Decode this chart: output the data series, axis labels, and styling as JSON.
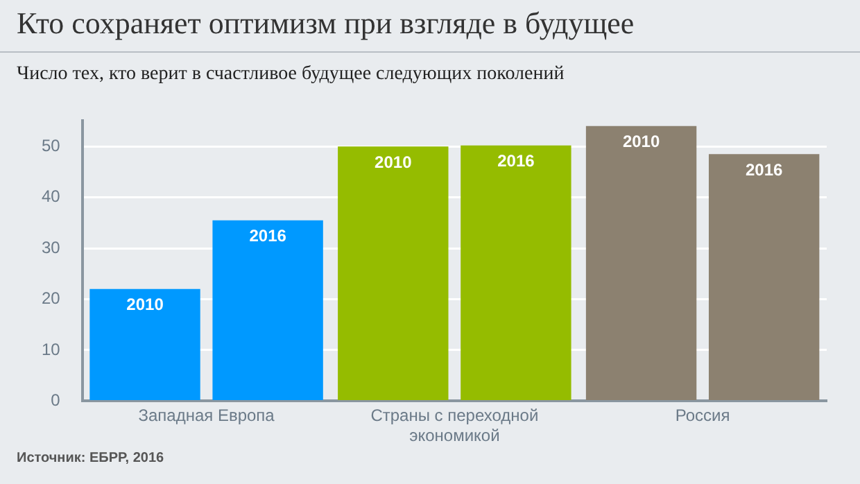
{
  "chart_data": {
    "type": "bar",
    "title": "Кто сохраняет оптимизм при взгляде в будущее",
    "subtitle": "Число тех, кто верит в счастливое будущее следующих поколений",
    "categories": [
      "Западная Европа",
      "Страны с переходной экономикой",
      "Россия"
    ],
    "series": [
      {
        "name": "2010",
        "colors": [
          "#0099ff",
          "#95bc00",
          "#8c8170"
        ],
        "values": [
          22,
          50,
          54
        ]
      },
      {
        "name": "2016",
        "colors": [
          "#0099ff",
          "#95bc00",
          "#8c8170"
        ],
        "values": [
          35.5,
          50.2,
          48.5
        ]
      }
    ],
    "ylim": [
      0,
      55
    ],
    "yticks": [
      0,
      10,
      20,
      30,
      40,
      50
    ],
    "grid": "y",
    "legend": false,
    "annotations": [
      "Источник:  ЕБРР, 2016"
    ]
  }
}
